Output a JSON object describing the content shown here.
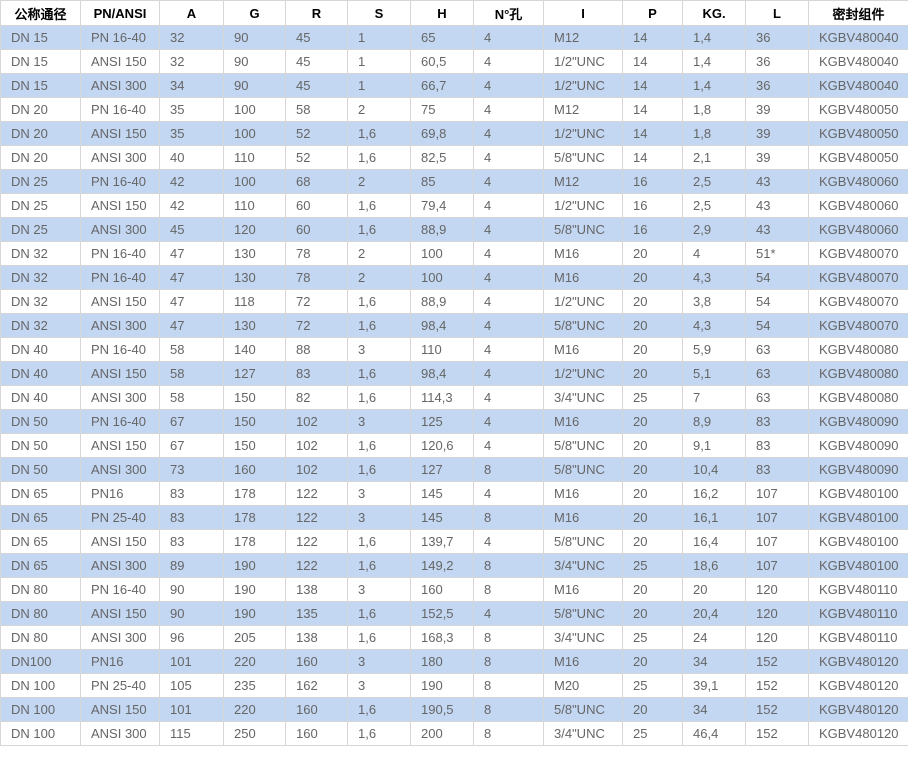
{
  "colors": {
    "row_alt_bg": "#c3d7f2",
    "row_bg": "#ffffff",
    "border": "#d6d6d6",
    "header_text": "#000000",
    "cell_text": "#666666"
  },
  "chart_data": {
    "type": "table",
    "title": "",
    "columns": [
      "公称通径",
      "PN/ANSI",
      "A",
      "G",
      "R",
      "S",
      "H",
      "N°孔",
      "I",
      "P",
      "KG.",
      "L",
      "密封组件"
    ],
    "rows": [
      [
        "DN 15",
        "PN 16-40",
        "32",
        "90",
        "45",
        "1",
        "65",
        "4",
        "M12",
        "14",
        "1,4",
        "36",
        "KGBV480040"
      ],
      [
        "DN 15",
        "ANSI 150",
        "32",
        "90",
        "45",
        "1",
        "60,5",
        "4",
        "1/2\"UNC",
        "14",
        "1,4",
        "36",
        "KGBV480040"
      ],
      [
        "DN 15",
        "ANSI 300",
        "34",
        "90",
        "45",
        "1",
        "66,7",
        "4",
        "1/2\"UNC",
        "14",
        "1,4",
        "36",
        "KGBV480040"
      ],
      [
        "DN 20",
        "PN 16-40",
        "35",
        "100",
        "58",
        "2",
        "75",
        "4",
        "M12",
        "14",
        "1,8",
        "39",
        "KGBV480050"
      ],
      [
        "DN 20",
        "ANSI 150",
        "35",
        "100",
        "52",
        "1,6",
        "69,8",
        "4",
        "1/2\"UNC",
        "14",
        "1,8",
        "39",
        "KGBV480050"
      ],
      [
        "DN 20",
        "ANSI 300",
        "40",
        "110",
        "52",
        "1,6",
        "82,5",
        "4",
        "5/8\"UNC",
        "14",
        "2,1",
        "39",
        "KGBV480050"
      ],
      [
        "DN 25",
        "PN 16-40",
        "42",
        "100",
        "68",
        "2",
        "85",
        "4",
        "M12",
        "16",
        "2,5",
        "43",
        "KGBV480060"
      ],
      [
        "DN 25",
        "ANSI 150",
        "42",
        "110",
        "60",
        "1,6",
        "79,4",
        "4",
        "1/2\"UNC",
        "16",
        "2,5",
        "43",
        "KGBV480060"
      ],
      [
        "DN 25",
        "ANSI 300",
        "45",
        "120",
        "60",
        "1,6",
        "88,9",
        "4",
        "5/8\"UNC",
        "16",
        "2,9",
        "43",
        "KGBV480060"
      ],
      [
        "DN 32",
        "PN 16-40",
        "47",
        "130",
        "78",
        "2",
        "100",
        "4",
        "M16",
        "20",
        "4",
        "51*",
        "KGBV480070"
      ],
      [
        "DN 32",
        "PN 16-40",
        "47",
        "130",
        "78",
        "2",
        "100",
        "4",
        "M16",
        "20",
        "4,3",
        "54",
        "KGBV480070"
      ],
      [
        "DN 32",
        "ANSI 150",
        "47",
        "118",
        "72",
        "1,6",
        "88,9",
        "4",
        "1/2\"UNC",
        "20",
        "3,8",
        "54",
        "KGBV480070"
      ],
      [
        "DN 32",
        "ANSI 300",
        "47",
        "130",
        "72",
        "1,6",
        "98,4",
        "4",
        "5/8\"UNC",
        "20",
        "4,3",
        "54",
        "KGBV480070"
      ],
      [
        "DN 40",
        "PN 16-40",
        "58",
        "140",
        "88",
        "3",
        "110",
        "4",
        "M16",
        "20",
        "5,9",
        "63",
        "KGBV480080"
      ],
      [
        "DN 40",
        "ANSI 150",
        "58",
        "127",
        "83",
        "1,6",
        "98,4",
        "4",
        "1/2\"UNC",
        "20",
        "5,1",
        "63",
        "KGBV480080"
      ],
      [
        "DN 40",
        "ANSI 300",
        "58",
        "150",
        "82",
        "1,6",
        "114,3",
        "4",
        "3/4\"UNC",
        "25",
        "7",
        "63",
        "KGBV480080"
      ],
      [
        "DN 50",
        "PN 16-40",
        "67",
        "150",
        "102",
        "3",
        "125",
        "4",
        "M16",
        "20",
        "8,9",
        "83",
        "KGBV480090"
      ],
      [
        "DN 50",
        "ANSI 150",
        "67",
        "150",
        "102",
        "1,6",
        "120,6",
        "4",
        "5/8\"UNC",
        "20",
        "9,1",
        "83",
        "KGBV480090"
      ],
      [
        "DN 50",
        "ANSI 300",
        "73",
        "160",
        "102",
        "1,6",
        "127",
        "8",
        "5/8\"UNC",
        "20",
        "10,4",
        "83",
        "KGBV480090"
      ],
      [
        "DN 65",
        "PN16",
        "83",
        "178",
        "122",
        "3",
        "145",
        "4",
        "M16",
        "20",
        "16,2",
        "107",
        "KGBV480100"
      ],
      [
        "DN 65",
        "PN 25-40",
        "83",
        "178",
        "122",
        "3",
        "145",
        "8",
        "M16",
        "20",
        "16,1",
        "107",
        "KGBV480100"
      ],
      [
        "DN 65",
        "ANSI 150",
        "83",
        "178",
        "122",
        "1,6",
        "139,7",
        "4",
        "5/8\"UNC",
        "20",
        "16,4",
        "107",
        "KGBV480100"
      ],
      [
        "DN 65",
        "ANSI 300",
        "89",
        "190",
        "122",
        "1,6",
        "149,2",
        "8",
        "3/4\"UNC",
        "25",
        "18,6",
        "107",
        "KGBV480100"
      ],
      [
        "DN 80",
        "PN 16-40",
        "90",
        "190",
        "138",
        "3",
        "160",
        "8",
        "M16",
        "20",
        "20",
        "120",
        "KGBV480110"
      ],
      [
        "DN 80",
        "ANSI 150",
        "90",
        "190",
        "135",
        "1,6",
        "152,5",
        "4",
        "5/8\"UNC",
        "20",
        "20,4",
        "120",
        "KGBV480110"
      ],
      [
        "DN 80",
        "ANSI 300",
        "96",
        "205",
        "138",
        "1,6",
        "168,3",
        "8",
        "3/4\"UNC",
        "25",
        "24",
        "120",
        "KGBV480110"
      ],
      [
        "DN100",
        "PN16",
        "101",
        "220",
        "160",
        "3",
        "180",
        "8",
        "M16",
        "20",
        "34",
        "152",
        "KGBV480120"
      ],
      [
        "DN 100",
        "PN 25-40",
        "105",
        "235",
        "162",
        "3",
        "190",
        "8",
        "M20",
        "25",
        "39,1",
        "152",
        "KGBV480120"
      ],
      [
        "DN 100",
        "ANSI 150",
        "101",
        "220",
        "160",
        "1,6",
        "190,5",
        "8",
        "5/8\"UNC",
        "20",
        "34",
        "152",
        "KGBV480120"
      ],
      [
        "DN 100",
        "ANSI 300",
        "115",
        "250",
        "160",
        "1,6",
        "200",
        "8",
        "3/4\"UNC",
        "25",
        "46,4",
        "152",
        "KGBV480120"
      ]
    ]
  }
}
